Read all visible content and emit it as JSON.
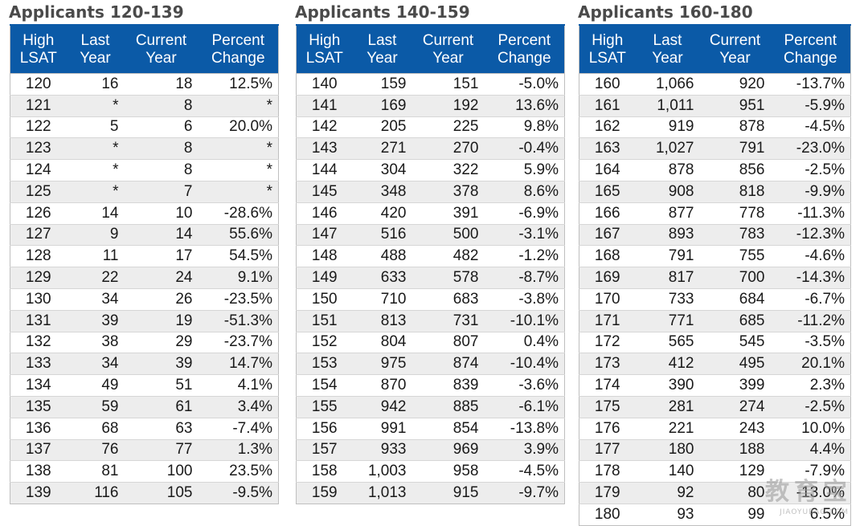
{
  "headers": [
    "High\nLSAT",
    "Last\nYear",
    "Current\nYear",
    "Percent\nChange"
  ],
  "tables": [
    {
      "title": "Applicants 120-139",
      "rows": [
        [
          "120",
          "16",
          "18",
          "12.5%"
        ],
        [
          "121",
          "*",
          "8",
          "*"
        ],
        [
          "122",
          "5",
          "6",
          "20.0%"
        ],
        [
          "123",
          "*",
          "8",
          "*"
        ],
        [
          "124",
          "*",
          "8",
          "*"
        ],
        [
          "125",
          "*",
          "7",
          "*"
        ],
        [
          "126",
          "14",
          "10",
          "-28.6%"
        ],
        [
          "127",
          "9",
          "14",
          "55.6%"
        ],
        [
          "128",
          "11",
          "17",
          "54.5%"
        ],
        [
          "129",
          "22",
          "24",
          "9.1%"
        ],
        [
          "130",
          "34",
          "26",
          "-23.5%"
        ],
        [
          "131",
          "39",
          "19",
          "-51.3%"
        ],
        [
          "132",
          "38",
          "29",
          "-23.7%"
        ],
        [
          "133",
          "34",
          "39",
          "14.7%"
        ],
        [
          "134",
          "49",
          "51",
          "4.1%"
        ],
        [
          "135",
          "59",
          "61",
          "3.4%"
        ],
        [
          "136",
          "68",
          "63",
          "-7.4%"
        ],
        [
          "137",
          "76",
          "77",
          "1.3%"
        ],
        [
          "138",
          "81",
          "100",
          "23.5%"
        ],
        [
          "139",
          "116",
          "105",
          "-9.5%"
        ]
      ]
    },
    {
      "title": "Applicants 140-159",
      "rows": [
        [
          "140",
          "159",
          "151",
          "-5.0%"
        ],
        [
          "141",
          "169",
          "192",
          "13.6%"
        ],
        [
          "142",
          "205",
          "225",
          "9.8%"
        ],
        [
          "143",
          "271",
          "270",
          "-0.4%"
        ],
        [
          "144",
          "304",
          "322",
          "5.9%"
        ],
        [
          "145",
          "348",
          "378",
          "8.6%"
        ],
        [
          "146",
          "420",
          "391",
          "-6.9%"
        ],
        [
          "147",
          "516",
          "500",
          "-3.1%"
        ],
        [
          "148",
          "488",
          "482",
          "-1.2%"
        ],
        [
          "149",
          "633",
          "578",
          "-8.7%"
        ],
        [
          "150",
          "710",
          "683",
          "-3.8%"
        ],
        [
          "151",
          "813",
          "731",
          "-10.1%"
        ],
        [
          "152",
          "804",
          "807",
          "0.4%"
        ],
        [
          "153",
          "975",
          "874",
          "-10.4%"
        ],
        [
          "154",
          "870",
          "839",
          "-3.6%"
        ],
        [
          "155",
          "942",
          "885",
          "-6.1%"
        ],
        [
          "156",
          "991",
          "854",
          "-13.8%"
        ],
        [
          "157",
          "933",
          "969",
          "3.9%"
        ],
        [
          "158",
          "1,003",
          "958",
          "-4.5%"
        ],
        [
          "159",
          "1,013",
          "915",
          "-9.7%"
        ]
      ]
    },
    {
      "title": "Applicants 160-180",
      "rows": [
        [
          "160",
          "1,066",
          "920",
          "-13.7%"
        ],
        [
          "161",
          "1,011",
          "951",
          "-5.9%"
        ],
        [
          "162",
          "919",
          "878",
          "-4.5%"
        ],
        [
          "163",
          "1,027",
          "791",
          "-23.0%"
        ],
        [
          "164",
          "878",
          "856",
          "-2.5%"
        ],
        [
          "165",
          "908",
          "818",
          "-9.9%"
        ],
        [
          "166",
          "877",
          "778",
          "-11.3%"
        ],
        [
          "167",
          "893",
          "783",
          "-12.3%"
        ],
        [
          "168",
          "791",
          "755",
          "-4.6%"
        ],
        [
          "169",
          "817",
          "700",
          "-14.3%"
        ],
        [
          "170",
          "733",
          "684",
          "-6.7%"
        ],
        [
          "171",
          "771",
          "685",
          "-11.2%"
        ],
        [
          "172",
          "565",
          "545",
          "-3.5%"
        ],
        [
          "173",
          "412",
          "495",
          "20.1%"
        ],
        [
          "174",
          "390",
          "399",
          "2.3%"
        ],
        [
          "175",
          "281",
          "274",
          "-2.5%"
        ],
        [
          "176",
          "221",
          "243",
          "10.0%"
        ],
        [
          "177",
          "180",
          "188",
          "4.4%"
        ],
        [
          "178",
          "140",
          "129",
          "-7.9%"
        ],
        [
          "179",
          "92",
          "80",
          "-13.0%"
        ],
        [
          "180",
          "93",
          "99",
          "6.5%"
        ]
      ]
    }
  ],
  "watermark": {
    "main": "教育宝",
    "sub": "JIAOYUBAO.COM"
  },
  "colors": {
    "header_bg": "#0b5aa7",
    "header_text": "#ffffff",
    "row_alt_bg": "#ededed",
    "title_text": "#4a4a4a"
  }
}
